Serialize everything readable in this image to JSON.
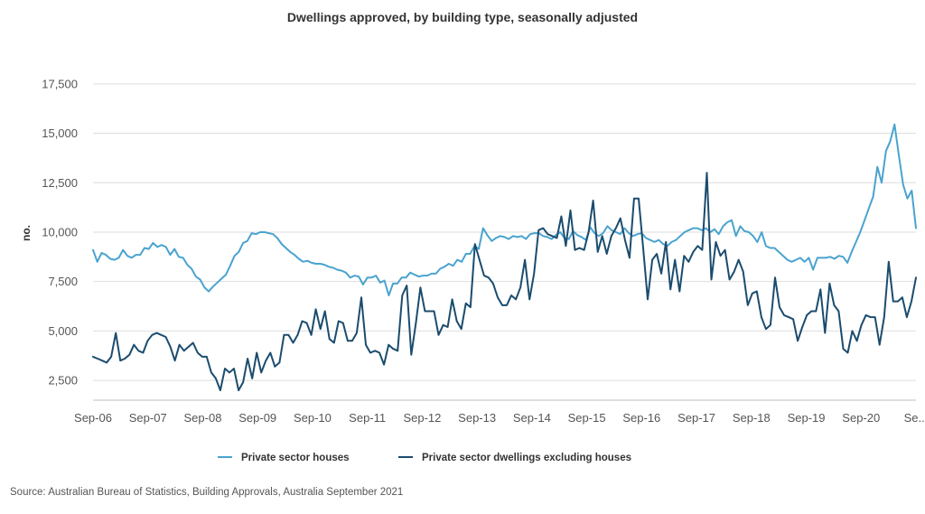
{
  "chart_data": {
    "type": "line",
    "title": "Dwellings approved, by building type, seasonally adjusted",
    "ylabel": "no.",
    "xlabel": "",
    "ylim": [
      1500,
      19000
    ],
    "yticks": [
      2500,
      5000,
      7500,
      10000,
      12500,
      15000,
      17500
    ],
    "ytick_labels": [
      "2,500",
      "5,000",
      "7,500",
      "10,000",
      "12,500",
      "15,000",
      "17,500"
    ],
    "xtick_labels": [
      "Sep-06",
      "Sep-07",
      "Sep-08",
      "Sep-09",
      "Sep-10",
      "Sep-11",
      "Sep-12",
      "Sep-13",
      "Sep-14",
      "Sep-15",
      "Sep-16",
      "Sep-17",
      "Sep-18",
      "Sep-19",
      "Sep-20",
      "Se..."
    ],
    "x_start": "Sep-06",
    "x_end": "Sep-21",
    "grid": true,
    "legend_position": "bottom",
    "series": [
      {
        "name": "Private sector houses",
        "color": "#4aa3cf",
        "values": [
          9100,
          8500,
          8950,
          8850,
          8650,
          8600,
          8700,
          9100,
          8800,
          8700,
          8850,
          8850,
          9200,
          9150,
          9450,
          9250,
          9350,
          9250,
          8850,
          9150,
          8750,
          8700,
          8350,
          8150,
          7750,
          7600,
          7200,
          7000,
          7250,
          7450,
          7650,
          7850,
          8300,
          8800,
          9000,
          9450,
          9550,
          9950,
          9900,
          10000,
          10000,
          9950,
          9900,
          9700,
          9400,
          9200,
          9000,
          8850,
          8650,
          8500,
          8550,
          8450,
          8400,
          8400,
          8350,
          8250,
          8200,
          8100,
          8050,
          7950,
          7700,
          7800,
          7750,
          7350,
          7700,
          7700,
          7800,
          7450,
          7550,
          6800,
          7400,
          7400,
          7700,
          7700,
          7950,
          7850,
          7750,
          7800,
          7800,
          7900,
          7900,
          8150,
          8250,
          8400,
          8300,
          8600,
          8500,
          8900,
          8900,
          9300,
          9150,
          10200,
          9850,
          9550,
          9700,
          9800,
          9750,
          9650,
          9800,
          9750,
          9800,
          9650,
          9900,
          9950,
          9950,
          9800,
          9750,
          9650,
          9850,
          10000,
          9700,
          9650,
          10050,
          9850,
          9750,
          9600,
          10250,
          9950,
          9800,
          9950,
          10300,
          10100,
          10000,
          9900,
          10200,
          9950,
          9800,
          9900,
          9950,
          9700,
          9600,
          9500,
          9600,
          9400,
          9300,
          9500,
          9600,
          9800,
          10000,
          10100,
          10200,
          10200,
          10100,
          10200,
          10000,
          10150,
          9900,
          10300,
          10500,
          10600,
          9800,
          10300,
          10050,
          10000,
          9800,
          9500,
          10000,
          9300,
          9200,
          9200,
          9000,
          8800,
          8600,
          8500,
          8600,
          8700,
          8500,
          8700,
          8100,
          8700,
          8700,
          8700,
          8750,
          8650,
          8800,
          8750,
          8450,
          9000,
          9500,
          10000,
          10600,
          11200,
          11800,
          13300,
          12500,
          14100,
          14600,
          15450,
          13900,
          12400,
          11700,
          12100,
          10200
        ]
      },
      {
        "name": "Private sector dwellings excluding houses",
        "color": "#1b4c6e",
        "values": [
          3700,
          3600,
          3500,
          3400,
          3700,
          4900,
          3500,
          3600,
          3800,
          4300,
          4000,
          3900,
          4500,
          4800,
          4900,
          4800,
          4700,
          4200,
          3500,
          4300,
          4000,
          4200,
          4400,
          3900,
          3700,
          3700,
          2900,
          2600,
          2000,
          3100,
          2900,
          3100,
          2000,
          2400,
          3600,
          2600,
          3900,
          2900,
          3500,
          3900,
          3200,
          3400,
          4800,
          4800,
          4400,
          4800,
          5500,
          5400,
          4800,
          6100,
          5100,
          6000,
          4600,
          4400,
          5500,
          5400,
          4500,
          4500,
          4900,
          6700,
          4300,
          3900,
          4000,
          3900,
          3300,
          4300,
          4100,
          4000,
          6800,
          7300,
          3800,
          5400,
          7200,
          6000,
          6000,
          6000,
          4800,
          5300,
          5200,
          6600,
          5500,
          5100,
          6400,
          6200,
          9400,
          8600,
          7800,
          7700,
          7400,
          6700,
          6300,
          6300,
          6800,
          6600,
          7200,
          8600,
          6600,
          7900,
          10100,
          10200,
          9900,
          9800,
          9700,
          10800,
          9300,
          11100,
          9100,
          9200,
          9100,
          10000,
          11600,
          9000,
          9800,
          8900,
          9800,
          10200,
          10700,
          9600,
          8700,
          11700,
          11700,
          9200,
          6600,
          8600,
          8900,
          7900,
          9500,
          7100,
          8600,
          7000,
          8800,
          8500,
          9000,
          9300,
          9100,
          13000,
          7600,
          9500,
          8800,
          9100,
          7600,
          8000,
          8600,
          8000,
          6300,
          6900,
          7000,
          5700,
          5100,
          5300,
          7700,
          6200,
          5800,
          5700,
          5600,
          4500,
          5200,
          5800,
          6000,
          6000,
          7100,
          4900,
          7400,
          6300,
          6000,
          4100,
          3900,
          5000,
          4500,
          5300,
          5800,
          5700,
          5700,
          4300,
          5700,
          8500,
          6500,
          6500,
          6700,
          5700,
          6500,
          7700
        ]
      }
    ]
  },
  "source_text": "Source: Australian Bureau of Statistics, Building Approvals, Australia September 2021"
}
